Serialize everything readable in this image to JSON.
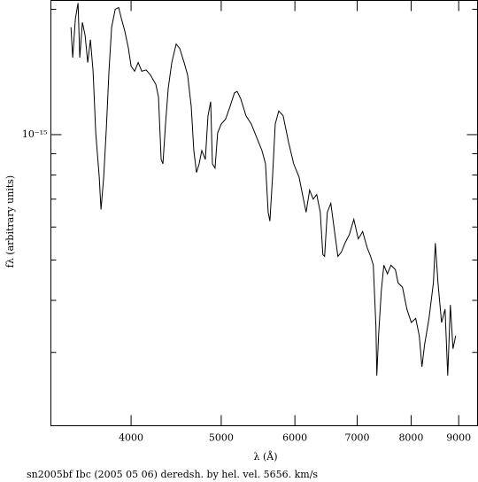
{
  "chart_data": {
    "type": "line",
    "xlabel": "λ (Å)",
    "ylabel": "fλ (arbitrary units)",
    "caption": "sn2005bf Ibc (2005 05 06) deredsh. by hel. vel.  5656. km/s",
    "xscale": "log",
    "yscale": "log",
    "xlim": [
      3280,
      9430
    ],
    "ylim": [
      2e-16,
      2.1e-15
    ],
    "xticks": [
      4000,
      5000,
      6000,
      7000,
      8000,
      9000
    ],
    "yticks": [
      {
        "value": 1e-15,
        "label": "10⁻¹⁵"
      }
    ],
    "yminorticks": [
      2e-15,
      9e-16,
      8e-16,
      7e-16,
      6e-16,
      5e-16,
      4e-16,
      3e-16
    ],
    "color": "#000000",
    "x": [
      3447,
      3462,
      3485,
      3508,
      3523,
      3546,
      3570,
      3593,
      3617,
      3641,
      3665,
      3697,
      3713,
      3738,
      3762,
      3787,
      3812,
      3846,
      3879,
      3905,
      3939,
      3974,
      4000,
      4035,
      4071,
      4107,
      4152,
      4197,
      4253,
      4281,
      4309,
      4328,
      4356,
      4385,
      4424,
      4472,
      4512,
      4561,
      4601,
      4642,
      4672,
      4703,
      4734,
      4765,
      4807,
      4839,
      4871,
      4892,
      4924,
      4956,
      5000,
      5055,
      5111,
      5167,
      5201,
      5247,
      5316,
      5387,
      5458,
      5530,
      5579,
      5616,
      5640,
      5677,
      5715,
      5765,
      5828,
      5905,
      5982,
      6062,
      6128,
      6169,
      6223,
      6278,
      6333,
      6389,
      6430,
      6458,
      6501,
      6558,
      6616,
      6674,
      6733,
      6792,
      6867,
      6942,
      7019,
      7096,
      7174,
      7237,
      7285,
      7333,
      7349,
      7381,
      7430,
      7478,
      7544,
      7611,
      7695,
      7745,
      7831,
      7917,
      8004,
      8092,
      8163,
      8217,
      8271,
      8362,
      8454,
      8494,
      8550,
      8626,
      8701,
      8759,
      8816,
      8874,
      8933
    ],
    "values": [
      1.81e-15,
      1.53e-15,
      1.9e-15,
      2.07e-15,
      1.53e-15,
      1.86e-15,
      1.73e-15,
      1.49e-15,
      1.69e-15,
      1.42e-15,
      1.01e-15,
      7.91e-16,
      6.61e-16,
      7.91e-16,
      1.03e-15,
      1.42e-15,
      1.81e-15,
      2e-15,
      2.02e-15,
      1.9e-15,
      1.77e-15,
      1.61e-15,
      1.46e-15,
      1.42e-15,
      1.49e-15,
      1.42e-15,
      1.43e-15,
      1.39e-15,
      1.32e-15,
      1.23e-15,
      8.72e-16,
      8.51e-16,
      1.06e-15,
      1.29e-15,
      1.49e-15,
      1.65e-15,
      1.61e-15,
      1.49e-15,
      1.39e-15,
      1.17e-15,
      9.16e-16,
      8.11e-16,
      8.51e-16,
      9.16e-16,
      8.72e-16,
      1.11e-15,
      1.2e-15,
      8.51e-16,
      8.31e-16,
      1.01e-15,
      1.06e-15,
      1.09e-15,
      1.17e-15,
      1.26e-15,
      1.27e-15,
      1.22e-15,
      1.11e-15,
      1.06e-15,
      9.85e-16,
      9.16e-16,
      8.51e-16,
      6.51e-16,
      6.2e-16,
      7.91e-16,
      1.06e-15,
      1.14e-15,
      1.11e-15,
      9.62e-16,
      8.51e-16,
      7.91e-16,
      7e-16,
      6.51e-16,
      7.36e-16,
      7e-16,
      7.18e-16,
      6.51e-16,
      5.15e-16,
      5.1e-16,
      6.51e-16,
      6.84e-16,
      5.9e-16,
      5.1e-16,
      5.23e-16,
      5.49e-16,
      5.76e-16,
      6.26e-16,
      5.62e-16,
      5.85e-16,
      5.36e-16,
      5.1e-16,
      4.86e-16,
      3.45e-16,
      2.64e-16,
      3.29e-16,
      4.2e-16,
      4.86e-16,
      4.63e-16,
      4.86e-16,
      4.74e-16,
      4.41e-16,
      4.3e-16,
      3.81e-16,
      3.54e-16,
      3.62e-16,
      3.29e-16,
      2.77e-16,
      3.13e-16,
      3.62e-16,
      4.41e-16,
      5.49e-16,
      4.41e-16,
      3.54e-16,
      3.81e-16,
      2.64e-16,
      3.9e-16,
      3.06e-16,
      3.29e-16
    ]
  }
}
